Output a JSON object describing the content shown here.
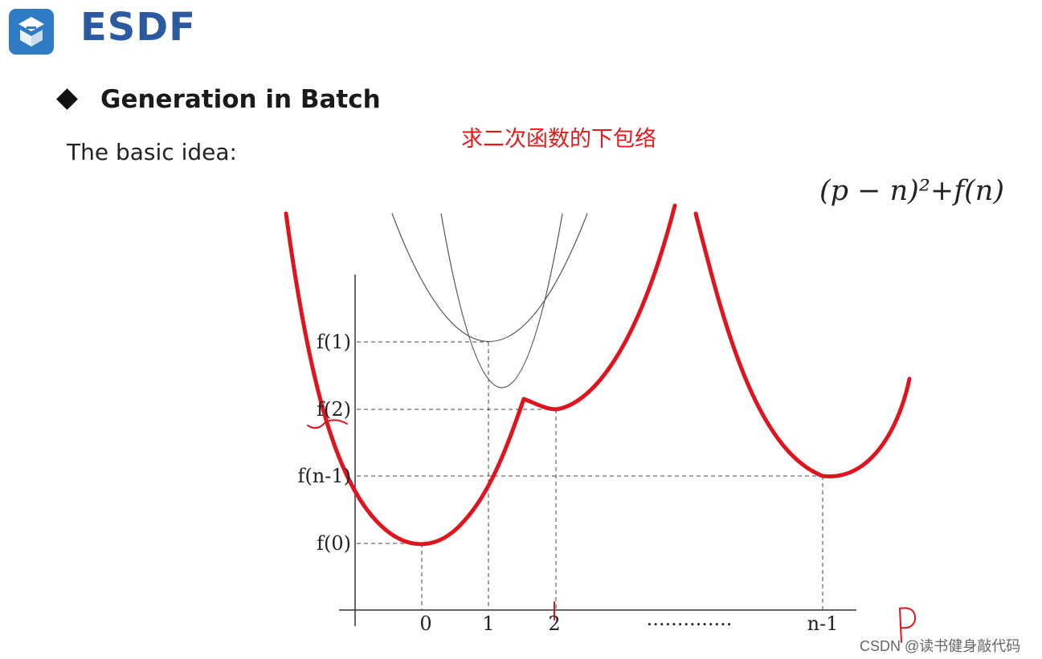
{
  "header": {
    "logo_icon": "esdf-logo-icon",
    "logo_color": "#2f7bc4",
    "title": "ESDF"
  },
  "section": {
    "bullet_icon": "diamond-bullet-icon",
    "heading": "Generation in Batch",
    "intro": "The basic idea:"
  },
  "annotation": {
    "text": "求二次函数的下包络",
    "color": "#e21a1a"
  },
  "formula": "(p − n)²+f(n)",
  "chart_data": {
    "type": "line",
    "x_ticks": [
      "0",
      "1",
      "2",
      "n-1"
    ],
    "x_dots": "..............",
    "y_ticks": [
      "f(1)",
      "f(2)",
      "f(n-1)",
      "f(0)"
    ],
    "x_axis_handwritten_label": "P",
    "lower_envelope_color": "#e0141e",
    "parabola_color": "#555555"
  },
  "watermark": "CSDN @读书健身敲代码"
}
